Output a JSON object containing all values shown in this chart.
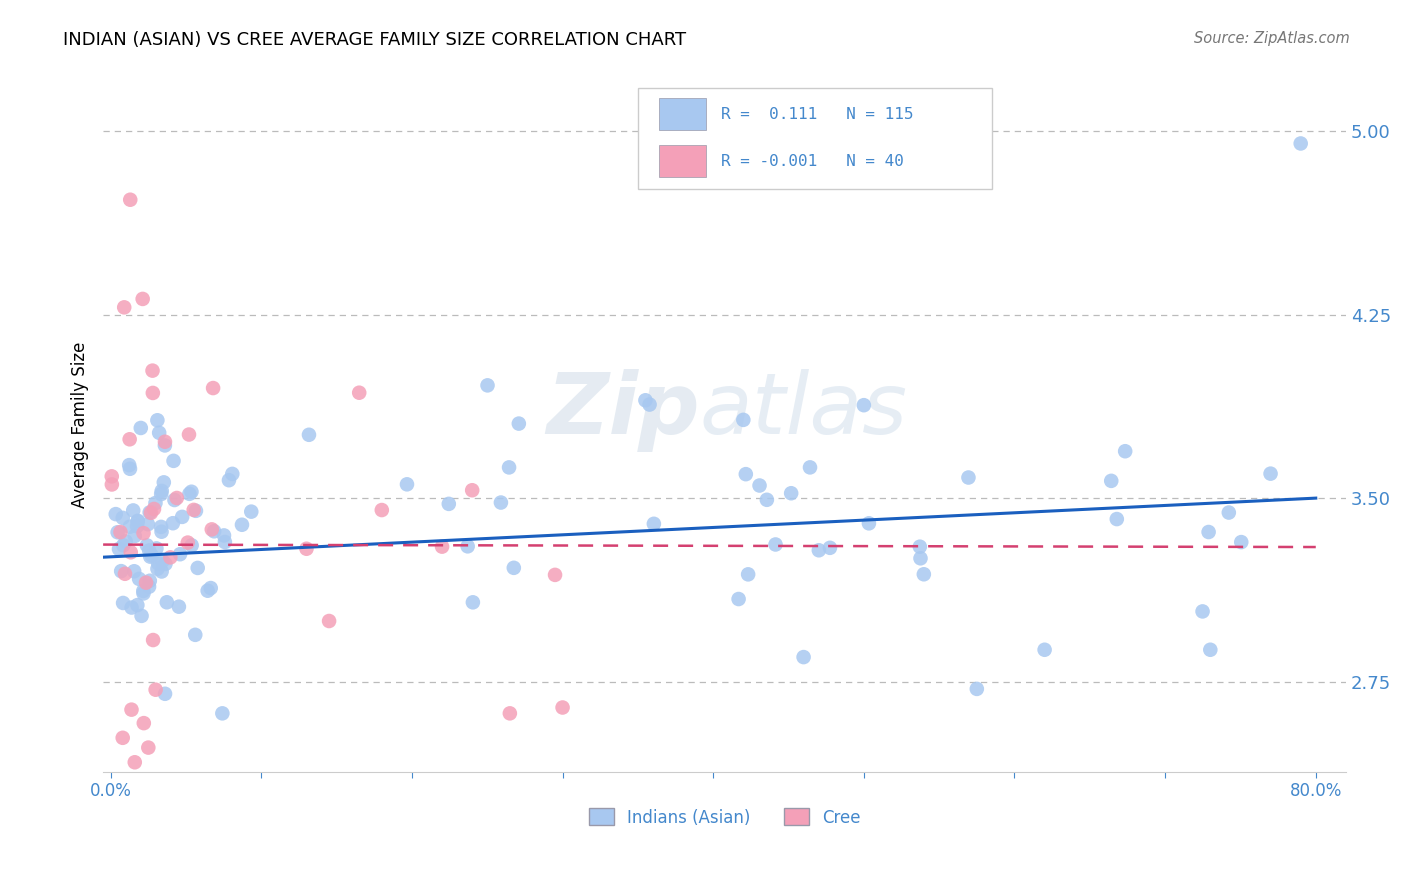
{
  "title": "INDIAN (ASIAN) VS CREE AVERAGE FAMILY SIZE CORRELATION CHART",
  "source": "Source: ZipAtlas.com",
  "ylabel": "Average Family Size",
  "xlim": [
    -0.005,
    0.82
  ],
  "ylim": [
    2.38,
    5.22
  ],
  "yticks": [
    2.75,
    3.5,
    4.25,
    5.0
  ],
  "xtick_pos": [
    0.0,
    0.1,
    0.2,
    0.3,
    0.4,
    0.5,
    0.6,
    0.7,
    0.8
  ],
  "xtick_labels": [
    "0.0%",
    "",
    "",
    "",
    "",
    "",
    "",
    "",
    "80.0%"
  ],
  "legend_r1": "0.111",
  "legend_n1": "115",
  "legend_r2": "-0.001",
  "legend_n2": "40",
  "series1_color": "#a8c8f0",
  "series2_color": "#f4a0b8",
  "trend1_color": "#1a5fbf",
  "trend2_color": "#d44070",
  "grid_color": "#bbbbbb",
  "axis_color": "#4488cc",
  "series1_label": "Indians (Asian)",
  "series2_label": "Cree",
  "trend1_x0": 0.0,
  "trend1_y0": 3.26,
  "trend1_x1": 0.8,
  "trend1_y1": 3.5,
  "trend2_x0": 0.0,
  "trend2_y0": 3.31,
  "trend2_x1": 0.8,
  "trend2_y1": 3.3
}
